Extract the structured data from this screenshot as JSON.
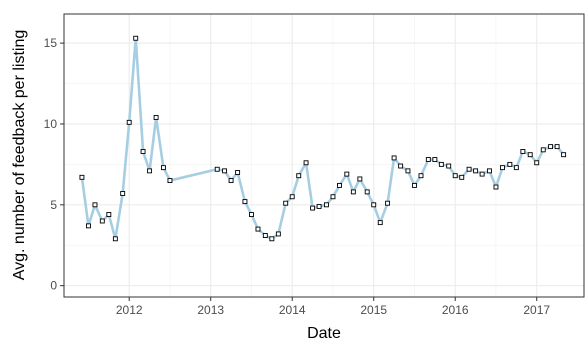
{
  "chart_data": {
    "type": "line",
    "xlabel": "Date",
    "ylabel": "Avg. number of feedback per listing",
    "x_ticks": [
      "2012",
      "2013",
      "2014",
      "2015",
      "2016",
      "2017"
    ],
    "y_ticks": [
      "0",
      "5",
      "10",
      "15"
    ],
    "xlim": [
      2011.2,
      2017.58
    ],
    "ylim": [
      -0.7,
      16.8
    ],
    "grid": true,
    "line_color": "#a6cee3",
    "marker_color": "#000000",
    "series": [
      {
        "x": [
          2011.42,
          2011.5,
          2011.58,
          2011.67,
          2011.75,
          2011.83,
          2011.92,
          2012.0,
          2012.08,
          2012.17,
          2012.25,
          2012.33,
          2012.42,
          2012.5,
          2013.08,
          2013.17,
          2013.25,
          2013.33,
          2013.42,
          2013.5,
          2013.58,
          2013.67,
          2013.75,
          2013.83,
          2013.92,
          2014.0,
          2014.08,
          2014.17,
          2014.25,
          2014.33,
          2014.42,
          2014.5,
          2014.58,
          2014.67,
          2014.75,
          2014.83,
          2014.92,
          2015.0,
          2015.08,
          2015.17,
          2015.25,
          2015.33,
          2015.42,
          2015.5,
          2015.58,
          2015.67,
          2015.75,
          2015.83,
          2015.92,
          2016.0,
          2016.08,
          2016.17,
          2016.25,
          2016.33,
          2016.42,
          2016.5,
          2016.58,
          2016.67,
          2016.75,
          2016.83,
          2016.92,
          2017.0,
          2017.08,
          2017.17,
          2017.25,
          2017.33
        ],
        "y": [
          6.7,
          3.7,
          5.0,
          4.0,
          4.4,
          2.9,
          5.7,
          10.1,
          15.3,
          8.3,
          7.1,
          10.4,
          7.3,
          6.5,
          7.2,
          7.1,
          6.5,
          7.0,
          5.2,
          4.4,
          3.5,
          3.1,
          2.9,
          3.2,
          5.1,
          5.5,
          6.8,
          7.6,
          4.8,
          4.9,
          5.0,
          5.5,
          6.2,
          6.9,
          5.8,
          6.6,
          5.8,
          5.0,
          3.9,
          5.1,
          7.9,
          7.4,
          7.1,
          6.2,
          6.8,
          7.8,
          7.8,
          7.5,
          7.4,
          6.8,
          6.7,
          7.2,
          7.1,
          6.9,
          7.1,
          6.1,
          7.3,
          7.5,
          7.3,
          8.3,
          8.1,
          7.6,
          8.4,
          8.6,
          8.6,
          8.1
        ]
      }
    ]
  }
}
